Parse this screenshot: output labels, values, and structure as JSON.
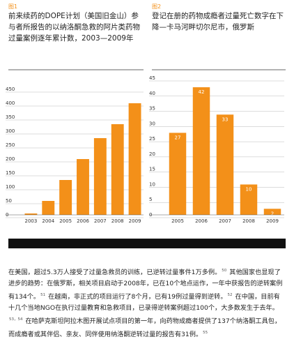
{
  "chart_data": [
    {
      "type": "bar",
      "label": "图1",
      "title": "前来续药的DOPE计划（美国旧金山）参与者所报告的以纳洛酮急救的阿片类药物过量案例逐年累计数，2003—2009年",
      "categories": [
        "2003",
        "2004",
        "2005",
        "2006",
        "2007",
        "2008",
        "2009"
      ],
      "values": [
        5,
        50,
        125,
        200,
        275,
        325,
        400
      ],
      "color": "#f39019",
      "ylim": [
        0,
        450
      ],
      "yticks": [
        0,
        50,
        100,
        150,
        200,
        250,
        300,
        350,
        400,
        450
      ],
      "grid": true,
      "show_values": false
    },
    {
      "type": "bar",
      "label": "图2",
      "title": "登记在册的药物成瘾者过量死亡数字在下降—卡马河畔切尔尼市，俄罗斯",
      "categories": [
        "2005",
        "2006",
        "2007",
        "2008",
        "2009"
      ],
      "values": [
        27,
        42,
        33,
        10,
        2
      ],
      "color": "#f39019",
      "ylim": [
        0,
        45
      ],
      "yticks": [
        0,
        5,
        10,
        15,
        20,
        25,
        30,
        35,
        40,
        45
      ],
      "grid": true,
      "show_values": true
    }
  ],
  "body": [
    {
      "text": "在美国，超过5.3万人接受了过量急救员的训练，已逆转过量事件1万多例。",
      "note": "50"
    },
    {
      "text": "其他国家也显现了进步的趋势：在俄罗斯，相关项目启动于2008年，已在10个地点运作，一年中获报告的逆转案例有134个。",
      "note": "51"
    },
    {
      "text": "在越南，非正式的项目运行了8个月，已有19例过量得到逆转。",
      "note": "52"
    },
    {
      "text": "在中国，目前有十几个当地NGO在执行过量教育和急救项目，已录得逆转案例超过100个，大多数发生于去年。",
      "note": "53，54"
    },
    {
      "text": "在哈萨克斯坦阿拉木图开展试点项目的第一年，向药物成瘾者提供了137个纳洛酮工具包，而成瘾者或其伴侣、亲友、同伴使用纳洛酮逆转过量的报告有31例。",
      "note": "55"
    }
  ]
}
